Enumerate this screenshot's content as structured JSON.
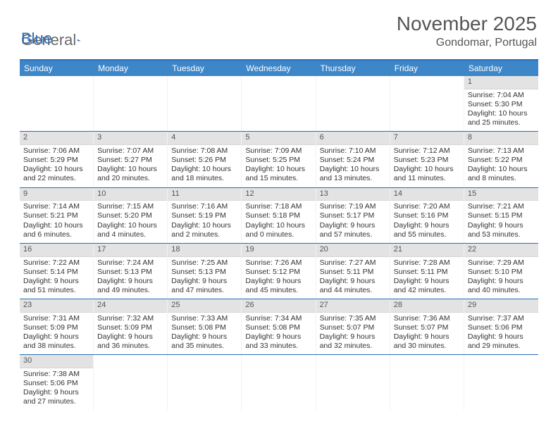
{
  "logo": {
    "text1": "General",
    "text2": "Blue",
    "triangle_color": "#2a6db8"
  },
  "title": "November 2025",
  "location": "Gondomar, Portugal",
  "colors": {
    "header_bar": "#3d87c9",
    "border": "#2a6db8",
    "daynum_bg": "#e3e3e3",
    "text": "#333333"
  },
  "day_names": [
    "Sunday",
    "Monday",
    "Tuesday",
    "Wednesday",
    "Thursday",
    "Friday",
    "Saturday"
  ],
  "weeks": [
    [
      {
        "n": null
      },
      {
        "n": null
      },
      {
        "n": null
      },
      {
        "n": null
      },
      {
        "n": null
      },
      {
        "n": null
      },
      {
        "n": "1",
        "sr": "7:04 AM",
        "ss": "5:30 PM",
        "dl": "10 hours and 25 minutes."
      }
    ],
    [
      {
        "n": "2",
        "sr": "7:06 AM",
        "ss": "5:29 PM",
        "dl": "10 hours and 22 minutes."
      },
      {
        "n": "3",
        "sr": "7:07 AM",
        "ss": "5:27 PM",
        "dl": "10 hours and 20 minutes."
      },
      {
        "n": "4",
        "sr": "7:08 AM",
        "ss": "5:26 PM",
        "dl": "10 hours and 18 minutes."
      },
      {
        "n": "5",
        "sr": "7:09 AM",
        "ss": "5:25 PM",
        "dl": "10 hours and 15 minutes."
      },
      {
        "n": "6",
        "sr": "7:10 AM",
        "ss": "5:24 PM",
        "dl": "10 hours and 13 minutes."
      },
      {
        "n": "7",
        "sr": "7:12 AM",
        "ss": "5:23 PM",
        "dl": "10 hours and 11 minutes."
      },
      {
        "n": "8",
        "sr": "7:13 AM",
        "ss": "5:22 PM",
        "dl": "10 hours and 8 minutes."
      }
    ],
    [
      {
        "n": "9",
        "sr": "7:14 AM",
        "ss": "5:21 PM",
        "dl": "10 hours and 6 minutes."
      },
      {
        "n": "10",
        "sr": "7:15 AM",
        "ss": "5:20 PM",
        "dl": "10 hours and 4 minutes."
      },
      {
        "n": "11",
        "sr": "7:16 AM",
        "ss": "5:19 PM",
        "dl": "10 hours and 2 minutes."
      },
      {
        "n": "12",
        "sr": "7:18 AM",
        "ss": "5:18 PM",
        "dl": "10 hours and 0 minutes."
      },
      {
        "n": "13",
        "sr": "7:19 AM",
        "ss": "5:17 PM",
        "dl": "9 hours and 57 minutes."
      },
      {
        "n": "14",
        "sr": "7:20 AM",
        "ss": "5:16 PM",
        "dl": "9 hours and 55 minutes."
      },
      {
        "n": "15",
        "sr": "7:21 AM",
        "ss": "5:15 PM",
        "dl": "9 hours and 53 minutes."
      }
    ],
    [
      {
        "n": "16",
        "sr": "7:22 AM",
        "ss": "5:14 PM",
        "dl": "9 hours and 51 minutes."
      },
      {
        "n": "17",
        "sr": "7:24 AM",
        "ss": "5:13 PM",
        "dl": "9 hours and 49 minutes."
      },
      {
        "n": "18",
        "sr": "7:25 AM",
        "ss": "5:13 PM",
        "dl": "9 hours and 47 minutes."
      },
      {
        "n": "19",
        "sr": "7:26 AM",
        "ss": "5:12 PM",
        "dl": "9 hours and 45 minutes."
      },
      {
        "n": "20",
        "sr": "7:27 AM",
        "ss": "5:11 PM",
        "dl": "9 hours and 44 minutes."
      },
      {
        "n": "21",
        "sr": "7:28 AM",
        "ss": "5:11 PM",
        "dl": "9 hours and 42 minutes."
      },
      {
        "n": "22",
        "sr": "7:29 AM",
        "ss": "5:10 PM",
        "dl": "9 hours and 40 minutes."
      }
    ],
    [
      {
        "n": "23",
        "sr": "7:31 AM",
        "ss": "5:09 PM",
        "dl": "9 hours and 38 minutes."
      },
      {
        "n": "24",
        "sr": "7:32 AM",
        "ss": "5:09 PM",
        "dl": "9 hours and 36 minutes."
      },
      {
        "n": "25",
        "sr": "7:33 AM",
        "ss": "5:08 PM",
        "dl": "9 hours and 35 minutes."
      },
      {
        "n": "26",
        "sr": "7:34 AM",
        "ss": "5:08 PM",
        "dl": "9 hours and 33 minutes."
      },
      {
        "n": "27",
        "sr": "7:35 AM",
        "ss": "5:07 PM",
        "dl": "9 hours and 32 minutes."
      },
      {
        "n": "28",
        "sr": "7:36 AM",
        "ss": "5:07 PM",
        "dl": "9 hours and 30 minutes."
      },
      {
        "n": "29",
        "sr": "7:37 AM",
        "ss": "5:06 PM",
        "dl": "9 hours and 29 minutes."
      }
    ],
    [
      {
        "n": "30",
        "sr": "7:38 AM",
        "ss": "5:06 PM",
        "dl": "9 hours and 27 minutes."
      },
      {
        "n": null
      },
      {
        "n": null
      },
      {
        "n": null
      },
      {
        "n": null
      },
      {
        "n": null
      },
      {
        "n": null
      }
    ]
  ],
  "labels": {
    "sunrise": "Sunrise: ",
    "sunset": "Sunset: ",
    "daylight": "Daylight: "
  }
}
